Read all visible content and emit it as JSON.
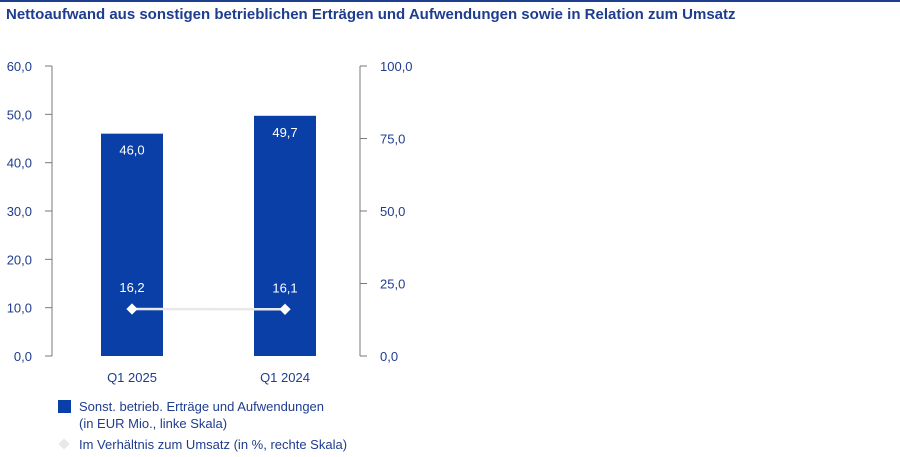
{
  "title": "Nettoaufwand aus sonstigen betrieblichen Erträgen und Aufwendungen sowie in Relation zum Umsatz",
  "colors": {
    "bar": "#0a3fa8",
    "line": "#e8e8e8",
    "text": "#1f3d8f",
    "axis": "#7a7a7a"
  },
  "chart_data": {
    "type": "bar",
    "categories": [
      "Q1 2025",
      "Q1 2024"
    ],
    "series": [
      {
        "name": "Sonst. betrieb. Erträge und Aufwendungen (in EUR Mio., linke Skala)",
        "type": "bar",
        "axis": "left",
        "values": [
          46.0,
          49.7
        ],
        "labels": [
          "46,0",
          "49,7"
        ]
      },
      {
        "name": "Im Verhältnis zum Umsatz (in %, rechte Skala)",
        "type": "line",
        "axis": "right",
        "values": [
          16.2,
          16.1
        ],
        "labels": [
          "16,2",
          "16,1"
        ]
      }
    ],
    "left_axis": {
      "ylim": [
        0,
        60
      ],
      "ticks": [
        "0,0",
        "10,0",
        "20,0",
        "30,0",
        "40,0",
        "50,0",
        "60,0"
      ]
    },
    "right_axis": {
      "ylim": [
        0,
        100
      ],
      "ticks": [
        "0,0",
        "25,0",
        "50,0",
        "75,0",
        "100,0"
      ]
    },
    "grid": false,
    "legend_position": "bottom-left"
  },
  "legend": {
    "bar_line1": "Sonst. betrieb. Erträge und Aufwendungen",
    "bar_line2": "(in EUR Mio., linke Skala)",
    "line_label": "Im Verhältnis zum Umsatz (in %, rechte Skala)"
  }
}
